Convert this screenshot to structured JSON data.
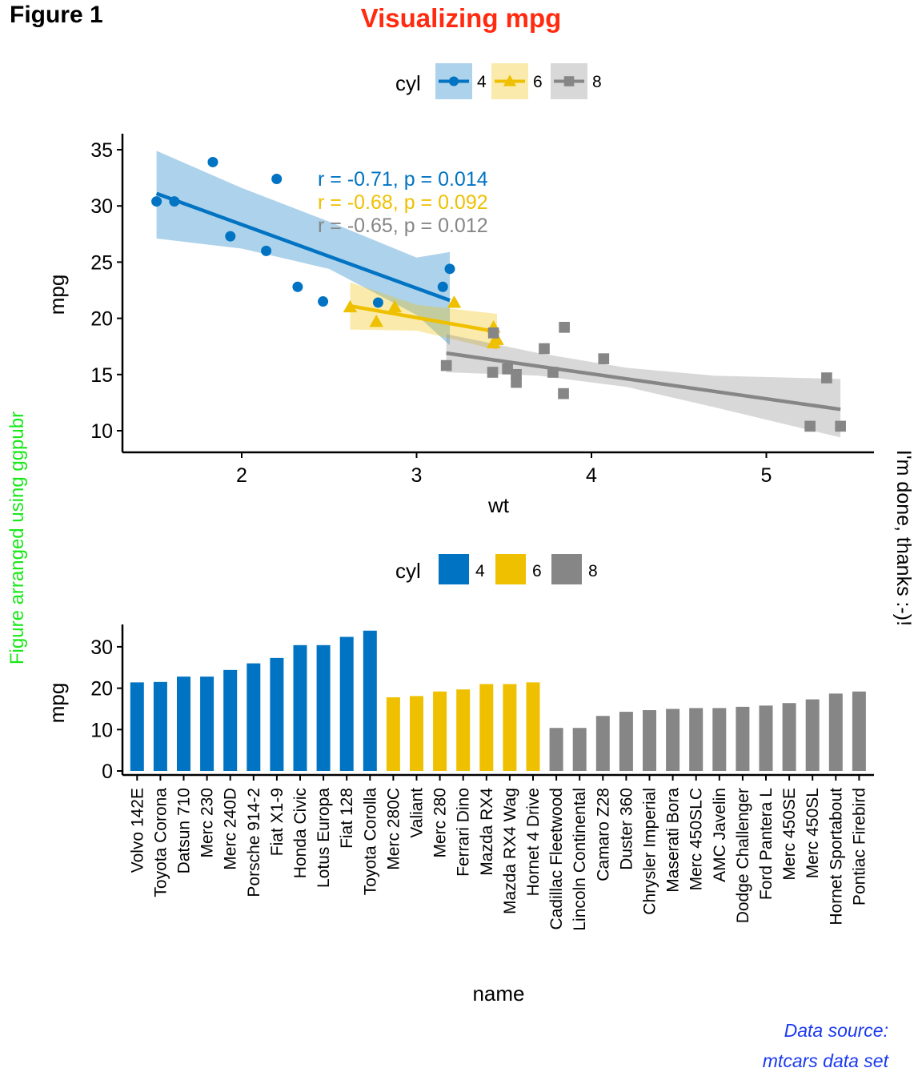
{
  "figure_label": "Figure 1",
  "title": "Visualizing mpg",
  "left_annotation": "Figure arranged using ggpubr",
  "right_annotation": "I'm done, thanks :-)!",
  "source_lines": [
    "Data source:",
    "mtcars data set"
  ],
  "colors": {
    "cyl4": "#0073C2",
    "cyl6": "#EFC000",
    "cyl8": "#868686",
    "title": "#FF2A0F",
    "left_annotation": "#19E819",
    "source": "#1A39F0"
  },
  "chart_data": [
    {
      "type": "scatter",
      "xlabel": "wt",
      "ylabel": "mpg",
      "xlim": [
        1.3,
        5.7
      ],
      "ylim": [
        8.1,
        35.9
      ],
      "xticks": [
        2,
        3,
        4,
        5
      ],
      "yticks": [
        10,
        15,
        20,
        25,
        30,
        35
      ],
      "grid": false,
      "legend": {
        "title": "cyl",
        "position": "top",
        "entries": [
          "4",
          "6",
          "8"
        ],
        "shapes": [
          "circle",
          "triangle",
          "square"
        ]
      },
      "annotations": [
        {
          "group": "4",
          "text": "r = -0.71, p = 0.014"
        },
        {
          "group": "6",
          "text": "r = -0.68, p = 0.092"
        },
        {
          "group": "8",
          "text": "r = -0.65, p = 0.012"
        }
      ],
      "series": [
        {
          "name": "4",
          "shape": "circle",
          "points": [
            [
              2.32,
              22.8
            ],
            [
              3.19,
              24.4
            ],
            [
              3.15,
              22.8
            ],
            [
              2.2,
              32.4
            ],
            [
              1.615,
              30.4
            ],
            [
              1.835,
              33.9
            ],
            [
              2.465,
              21.5
            ],
            [
              1.935,
              27.3
            ],
            [
              2.14,
              26.0
            ],
            [
              1.513,
              30.4
            ],
            [
              2.78,
              21.4
            ]
          ],
          "fit": {
            "x": [
              1.513,
              3.19
            ],
            "y": [
              31.1,
              21.6
            ]
          },
          "ci_lower": [
            [
              1.513,
              27.1
            ],
            [
              2.0,
              26.2
            ],
            [
              2.5,
              24.4
            ],
            [
              3.0,
              20.3
            ],
            [
              3.19,
              17.6
            ]
          ],
          "ci_upper": [
            [
              1.513,
              34.9
            ],
            [
              2.0,
              31.6
            ],
            [
              2.5,
              28.6
            ],
            [
              3.0,
              25.4
            ],
            [
              3.19,
              25.9
            ]
          ]
        },
        {
          "name": "6",
          "shape": "triangle",
          "points": [
            [
              2.62,
              21.0
            ],
            [
              2.875,
              21.0
            ],
            [
              3.215,
              21.4
            ],
            [
              3.46,
              18.1
            ],
            [
              3.44,
              19.2
            ],
            [
              3.44,
              17.8
            ],
            [
              2.77,
              19.7
            ]
          ],
          "fit": {
            "x": [
              2.62,
              3.46
            ],
            "y": [
              21.1,
              18.8
            ]
          },
          "ci_lower": [
            [
              2.62,
              19.0
            ],
            [
              3.0,
              18.9
            ],
            [
              3.46,
              17.2
            ]
          ],
          "ci_upper": [
            [
              2.62,
              23.2
            ],
            [
              3.0,
              21.2
            ],
            [
              3.46,
              20.4
            ]
          ]
        },
        {
          "name": "8",
          "shape": "square",
          "points": [
            [
              3.44,
              18.7
            ],
            [
              3.57,
              14.3
            ],
            [
              4.07,
              16.4
            ],
            [
              3.73,
              17.3
            ],
            [
              3.78,
              15.2
            ],
            [
              5.25,
              10.4
            ],
            [
              5.424,
              10.4
            ],
            [
              5.345,
              14.7
            ],
            [
              3.52,
              15.5
            ],
            [
              3.435,
              15.2
            ],
            [
              3.84,
              13.3
            ],
            [
              3.845,
              19.2
            ],
            [
              3.17,
              15.8
            ],
            [
              3.57,
              15.0
            ]
          ],
          "fit": {
            "x": [
              3.17,
              5.424
            ],
            "y": [
              16.9,
              11.9
            ]
          },
          "ci_lower": [
            [
              3.17,
              15.2
            ],
            [
              3.7,
              14.9
            ],
            [
              4.2,
              13.9
            ],
            [
              4.7,
              12.1
            ],
            [
              5.424,
              9.4
            ]
          ],
          "ci_upper": [
            [
              3.17,
              18.6
            ],
            [
              3.7,
              16.9
            ],
            [
              4.2,
              15.6
            ],
            [
              4.7,
              14.9
            ],
            [
              5.424,
              14.6
            ]
          ]
        }
      ]
    },
    {
      "type": "bar",
      "xlabel": "name",
      "ylabel": "mpg",
      "ylim": [
        0,
        35
      ],
      "yticks": [
        0,
        10,
        20,
        30
      ],
      "grid": false,
      "legend": {
        "title": "cyl",
        "position": "top",
        "entries": [
          "4",
          "6",
          "8"
        ]
      },
      "categories": [
        "Volvo 142E",
        "Toyota Corona",
        "Datsun 710",
        "Merc 230",
        "Merc 240D",
        "Porsche 914-2",
        "Fiat X1-9",
        "Honda Civic",
        "Lotus Europa",
        "Fiat 128",
        "Toyota Corolla",
        "Merc 280C",
        "Valiant",
        "Merc 280",
        "Ferrari Dino",
        "Mazda RX4",
        "Mazda RX4 Wag",
        "Hornet 4 Drive",
        "Cadillac Fleetwood",
        "Lincoln Continental",
        "Camaro Z28",
        "Duster 360",
        "Chrysler Imperial",
        "Maserati Bora",
        "Merc 450SLC",
        "AMC Javelin",
        "Dodge Challenger",
        "Ford Pantera L",
        "Merc 450SE",
        "Merc 450SL",
        "Hornet Sportabout",
        "Pontiac Firebird"
      ],
      "values": [
        21.4,
        21.5,
        22.8,
        22.8,
        24.4,
        26.0,
        27.3,
        30.4,
        30.4,
        32.4,
        33.9,
        17.8,
        18.1,
        19.2,
        19.7,
        21.0,
        21.0,
        21.4,
        10.4,
        10.4,
        13.3,
        14.3,
        14.7,
        15.0,
        15.2,
        15.2,
        15.5,
        15.8,
        16.4,
        17.3,
        18.7,
        19.2
      ],
      "groups": [
        "4",
        "4",
        "4",
        "4",
        "4",
        "4",
        "4",
        "4",
        "4",
        "4",
        "4",
        "6",
        "6",
        "6",
        "6",
        "6",
        "6",
        "6",
        "8",
        "8",
        "8",
        "8",
        "8",
        "8",
        "8",
        "8",
        "8",
        "8",
        "8",
        "8",
        "8",
        "8"
      ]
    }
  ]
}
